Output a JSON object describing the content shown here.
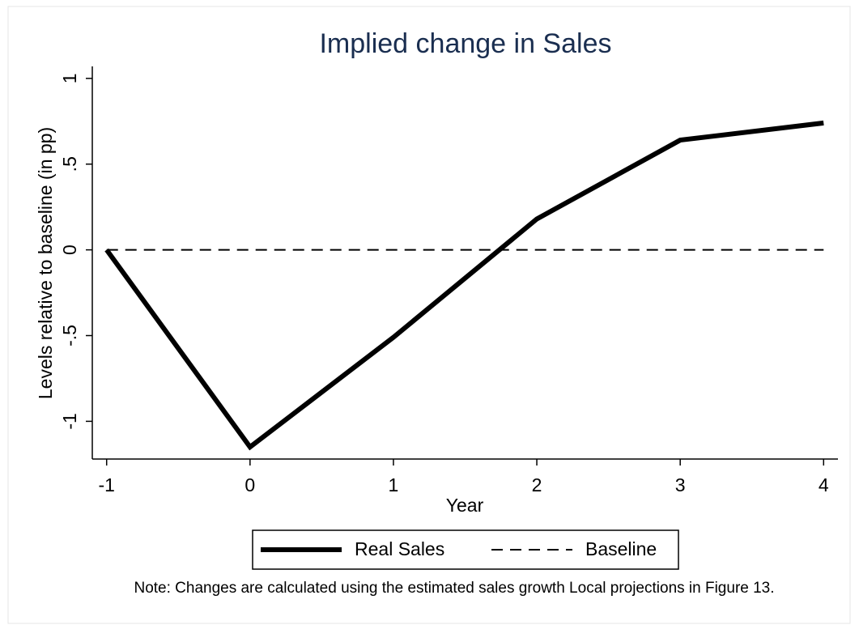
{
  "chart_data": {
    "type": "line",
    "title": "Implied change in Sales",
    "x_label": "Year",
    "y_label": "Levels relative to baseline (in pp)",
    "note": "Note: Changes are calculated using the estimated sales growth Local projections in Figure 13.",
    "x": [
      -1,
      0,
      1,
      2,
      3,
      4
    ],
    "series": [
      {
        "name": "Real Sales",
        "color": "#000000",
        "line_style": "solid",
        "values": [
          0,
          -1.15,
          -0.51,
          0.18,
          0.64,
          0.74
        ]
      },
      {
        "name": "Baseline",
        "color": "#000000",
        "line_style": "dashed",
        "values": [
          0,
          0,
          0,
          0,
          0,
          0
        ]
      }
    ],
    "xlim": [
      -1.1,
      4.1
    ],
    "xticks": [
      -1,
      0,
      1,
      2,
      3,
      4
    ],
    "ylim": [
      -1.22,
      1.07
    ],
    "yticks": [
      {
        "value": -1,
        "label": "-1"
      },
      {
        "value": -0.5,
        "label": "-.5"
      },
      0,
      {
        "value": 0.5,
        "label": ".5"
      },
      1
    ],
    "grid": false,
    "legend": "bottom"
  }
}
